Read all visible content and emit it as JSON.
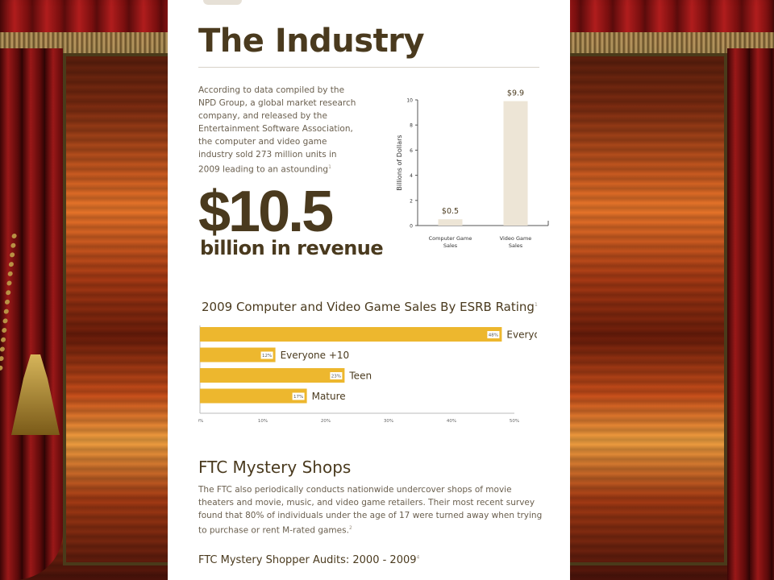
{
  "page": {
    "title": "The Industry",
    "intro_text": "According to data compiled by the NPD Group, a global market research company, and released by the Entertainment Software Association, the computer and video game industry sold 273 million units in 2009 leading to an astounding",
    "intro_ref": "1",
    "big_number": "$10.5",
    "big_number_sub": "billion in revenue"
  },
  "colors": {
    "heading": "#4a3a1e",
    "bar_vertical": "#ede5d6",
    "bar_horizontal": "#edb72e",
    "body_text": "#6a5f4e"
  },
  "chart_data": [
    {
      "type": "bar",
      "categories": [
        "Computer Game Sales",
        "Video Game Sales"
      ],
      "values": [
        0.5,
        9.9
      ],
      "data_labels": [
        "$0.5",
        "$9.9"
      ],
      "title": "",
      "xlabel": "",
      "ylabel": "Billions of Dollars",
      "ylim": [
        0,
        10
      ],
      "yticks": [
        "0",
        "2",
        "4",
        "6",
        "8",
        "10"
      ],
      "grid": false
    },
    {
      "type": "bar",
      "orientation": "horizontal",
      "title": "2009 Computer and Video Game Sales By ESRB Rating",
      "title_ref": "1",
      "categories": [
        "Everyone",
        "Everyone +10",
        "Teen",
        "Mature"
      ],
      "values": [
        48,
        12,
        23,
        17
      ],
      "data_labels": [
        "48%",
        "12%",
        "23%",
        "17%"
      ],
      "xlim": [
        0,
        50
      ],
      "xticks": [
        "0%",
        "10%",
        "20%",
        "30%",
        "40%",
        "50%"
      ],
      "grid": false
    }
  ],
  "ftc": {
    "title": "FTC Mystery Shops",
    "body": "The FTC also periodically conducts nationwide undercover shops of movie theaters and movie, music, and video game retailers. Their most recent survey found that 80% of individuals under the age of 17 were turned away when trying to purchase or rent M-rated games.",
    "body_ref": "2",
    "audits_title": "FTC Mystery Shopper Audits: 2000 - 2009",
    "audits_ref": "4"
  }
}
